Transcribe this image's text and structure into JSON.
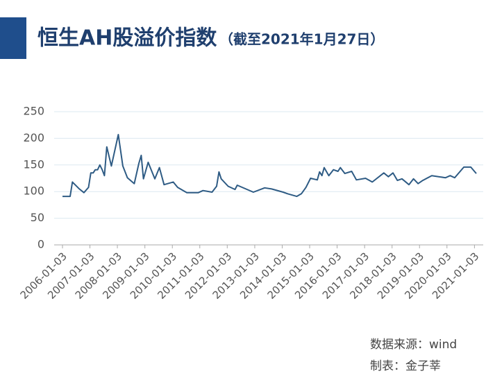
{
  "chart_data": {
    "type": "line",
    "title": "恒生AH股溢价指数",
    "subtitle": "（截至2021年1月27日）",
    "source": "数据来源：wind",
    "author": "制表：金子莘",
    "x": [
      "2006-01-03",
      "2006-04-15",
      "2006-05-15",
      "2006-08-15",
      "2006-10-15",
      "2006-12-15",
      "2007-01-15",
      "2007-02-15",
      "2007-03-15",
      "2007-04-15",
      "2007-05-15",
      "2007-06-15",
      "2007-07-15",
      "2007-08-15",
      "2007-10-15",
      "2008-01-15",
      "2008-03-15",
      "2008-05-15",
      "2008-08-15",
      "2008-10-15",
      "2008-11-15",
      "2008-12-15",
      "2009-02-15",
      "2009-05-15",
      "2009-07-15",
      "2009-09-15",
      "2010-01-15",
      "2010-03-15",
      "2010-07-15",
      "2010-12-15",
      "2011-02-15",
      "2011-06-15",
      "2011-08-15",
      "2011-09-15",
      "2011-10-15",
      "2012-01-15",
      "2012-04-15",
      "2012-05-15",
      "2012-12-15",
      "2013-05-15",
      "2013-08-15",
      "2014-01-15",
      "2014-03-15",
      "2014-07-15",
      "2014-09-15",
      "2014-11-15",
      "2015-01-15",
      "2015-04-15",
      "2015-05-15",
      "2015-06-15",
      "2015-07-15",
      "2015-09-15",
      "2015-11-15",
      "2016-01-15",
      "2016-02-15",
      "2016-04-15",
      "2016-07-15",
      "2016-09-15",
      "2017-01-15",
      "2017-04-15",
      "2017-09-15",
      "2017-11-15",
      "2018-01-15",
      "2018-03-15",
      "2018-05-15",
      "2018-08-15",
      "2018-10-15",
      "2018-12-15",
      "2019-02-15",
      "2019-06-15",
      "2019-09-15",
      "2019-12-15",
      "2020-02-15",
      "2020-03-15",
      "2020-04-15",
      "2020-08-15",
      "2020-11-15",
      "2021-01-27"
    ],
    "series": [
      {
        "name": "恒生AH股溢价指数",
        "color": "#2e5b84",
        "values": [
          91,
          91,
          118,
          105,
          98,
          108,
          135,
          135,
          141,
          141,
          150,
          141,
          130,
          184,
          148,
          207,
          148,
          126,
          115,
          153,
          168,
          124,
          155,
          124,
          145,
          113,
          118,
          108,
          98,
          98,
          102,
          99,
          110,
          137,
          124,
          110,
          104,
          112,
          99,
          107,
          105,
          99,
          96,
          91,
          96,
          108,
          125,
          122,
          137,
          130,
          145,
          130,
          141,
          138,
          145,
          134,
          138,
          122,
          125,
          118,
          135,
          128,
          135,
          121,
          124,
          113,
          124,
          115,
          121,
          130,
          128,
          126,
          130,
          128,
          126,
          146,
          146,
          134
        ]
      }
    ],
    "xlim": [
      "2006-01-03",
      "2021-01-27"
    ],
    "xticks": [
      "2006-01-03",
      "2007-01-03",
      "2008-01-03",
      "2009-01-03",
      "2010-01-03",
      "2011-01-03",
      "2012-01-03",
      "2013-01-03",
      "2014-01-03",
      "2015-01-03",
      "2016-01-03",
      "2017-01-03",
      "2018-01-03",
      "2019-01-03",
      "2020-01-03",
      "2021-01-03"
    ],
    "ylim": [
      0,
      250
    ],
    "yticks": [
      0,
      50,
      100,
      150,
      200,
      250
    ],
    "grid": true
  }
}
